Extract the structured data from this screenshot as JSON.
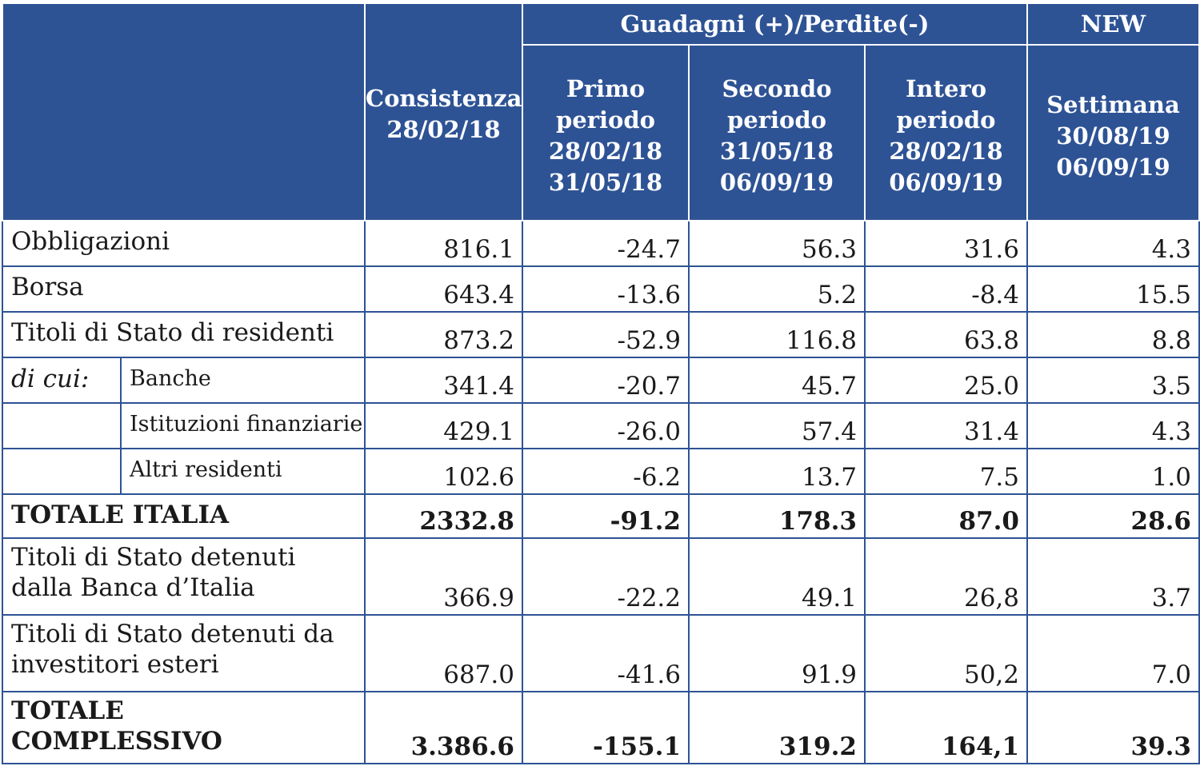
{
  "header": {
    "group_gains": "Guadagni (+)/Perdite(-)",
    "group_new": "NEW",
    "columns": [
      [
        "Consistenza",
        "28/02/18"
      ],
      [
        "Primo",
        "periodo",
        "28/02/18",
        "31/05/18"
      ],
      [
        "Secondo",
        "periodo",
        "31/05/18",
        "06/09/19"
      ],
      [
        "Intero",
        "periodo",
        "28/02/18",
        "06/09/19"
      ],
      [
        "Settimana",
        "30/08/19",
        "06/09/19"
      ]
    ]
  },
  "rows": [
    {
      "label": [
        "Obbligazioni"
      ],
      "values": [
        "816.1",
        "-24.7",
        "56.3",
        "31.6",
        "4.3"
      ]
    },
    {
      "label": [
        "Borsa"
      ],
      "values": [
        "643.4",
        "-13.6",
        "5.2",
        "-8.4",
        "15.5"
      ]
    },
    {
      "label": [
        "Titoli di Stato di residenti"
      ],
      "values": [
        "873.2",
        "-52.9",
        "116.8",
        "63.8",
        "8.8"
      ]
    },
    {
      "prefix": "di cui:",
      "sublabel": "Banche",
      "values": [
        "341.4",
        "-20.7",
        "45.7",
        "25.0",
        "3.5"
      ]
    },
    {
      "prefix": "",
      "sublabel": "Istituzioni finanziarie",
      "values": [
        "429.1",
        "-26.0",
        "57.4",
        "31.4",
        "4.3"
      ]
    },
    {
      "prefix": "",
      "sublabel": "Altri residenti",
      "values": [
        "102.6",
        "-6.2",
        "13.7",
        "7.5",
        "1.0"
      ]
    },
    {
      "label": [
        "TOTALE ITALIA"
      ],
      "bold": true,
      "values": [
        "2332.8",
        "-91.2",
        "178.3",
        "87.0",
        "28.6"
      ]
    },
    {
      "label": [
        "Titoli di Stato detenuti",
        "dalla Banca d’Italia"
      ],
      "values": [
        "366.9",
        "-22.2",
        "49.1",
        "26,8",
        "3.7"
      ]
    },
    {
      "label": [
        "Titoli di Stato detenuti da",
        "investitori esteri"
      ],
      "values": [
        "687.0",
        "-41.6",
        "91.9",
        "50,2",
        "7.0"
      ]
    },
    {
      "label": [
        "TOTALE",
        "COMPLESSIVO"
      ],
      "bold": true,
      "values": [
        "3.386.6",
        "-155.1",
        "319.2",
        "164,1",
        "39.3"
      ]
    }
  ]
}
